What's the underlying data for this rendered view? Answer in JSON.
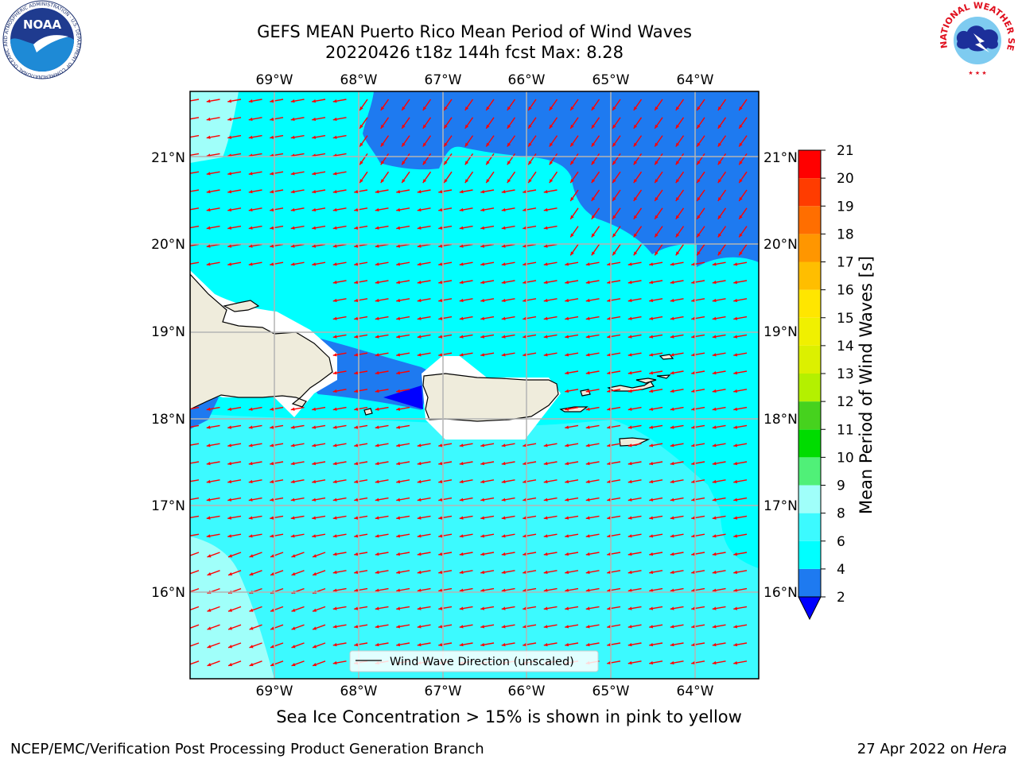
{
  "header": {
    "title_line1": "GEFS MEAN Puerto Rico Mean Period of Wind Waves",
    "title_line2": "20220426 t18z 144h fcst   Max: 8.28"
  },
  "logos": {
    "noaa_text": "NOAA",
    "noaa_ring_text": "NATIONAL OCEANIC AND ATMOSPHERIC ADMINISTRATION · U.S. DEPARTMENT OF COMMERCE",
    "nws_ring_text": "NATIONAL WEATHER SERVICE"
  },
  "map": {
    "lon_labels": [
      "69°W",
      "68°W",
      "67°W",
      "66°W",
      "65°W",
      "64°W"
    ],
    "lat_labels": [
      "21°N",
      "20°N",
      "19°N",
      "18°N",
      "17°N",
      "16°N"
    ],
    "legend_label": "Wind Wave Direction (unscaled)",
    "colors": {
      "land": "#efecdc",
      "sea_2_4": "#1e7af0",
      "sea_4_6": "#00ffff",
      "sea_6_8": "#3cfaff",
      "sea_8_9": "#a0fffa",
      "arrow": "#ff0000",
      "grid": "#b4b4b4"
    }
  },
  "colorbar": {
    "label": "Mean Period of Wind Waves [s]",
    "ticks": [
      "2",
      "4",
      "6",
      "8",
      "9",
      "10",
      "11",
      "12",
      "13",
      "14",
      "15",
      "16",
      "17",
      "18",
      "19",
      "20",
      "21"
    ],
    "bands": [
      {
        "from": "2",
        "to": "4",
        "color": "#1e7af0"
      },
      {
        "from": "4",
        "to": "6",
        "color": "#00ffff"
      },
      {
        "from": "6",
        "to": "8",
        "color": "#3cfaff"
      },
      {
        "from": "8",
        "to": "9",
        "color": "#a0fffa"
      },
      {
        "from": "9",
        "to": "10",
        "color": "#50f078"
      },
      {
        "from": "10",
        "to": "11",
        "color": "#00dc00"
      },
      {
        "from": "11",
        "to": "12",
        "color": "#46d21e"
      },
      {
        "from": "12",
        "to": "13",
        "color": "#b4f000"
      },
      {
        "from": "13",
        "to": "14",
        "color": "#dcf000"
      },
      {
        "from": "14",
        "to": "15",
        "color": "#f0f000"
      },
      {
        "from": "15",
        "to": "16",
        "color": "#ffe600"
      },
      {
        "from": "16",
        "to": "17",
        "color": "#ffbe00"
      },
      {
        "from": "17",
        "to": "18",
        "color": "#ff9600"
      },
      {
        "from": "18",
        "to": "19",
        "color": "#ff6e00"
      },
      {
        "from": "19",
        "to": "20",
        "color": "#ff3c00"
      },
      {
        "from": "20",
        "to": "21",
        "color": "#ff0000"
      }
    ],
    "under_color": "#0000ff"
  },
  "notes": {
    "sea_ice": "Sea Ice Concentration > 15% is shown in pink to yellow"
  },
  "footer": {
    "left": "NCEP/EMC/Verification Post Processing Product Generation Branch",
    "right_prefix": "27 Apr 2022 on ",
    "right_host": "Hera"
  }
}
